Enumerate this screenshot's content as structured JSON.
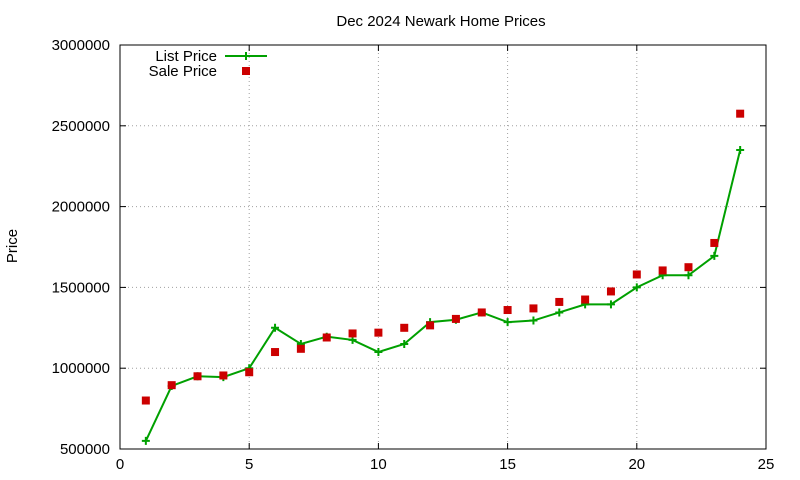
{
  "chart_data": {
    "type": "line",
    "title": "Dec 2024 Newark Home Prices",
    "xlabel": "",
    "ylabel": "Price",
    "xlim": [
      0,
      25
    ],
    "ylim": [
      500000,
      3000000
    ],
    "xticks": [
      0,
      5,
      10,
      15,
      20,
      25
    ],
    "yticks": [
      500000,
      1000000,
      1500000,
      2000000,
      2500000,
      3000000
    ],
    "grid": true,
    "legend_position": "top-left",
    "series": [
      {
        "name": "List Price",
        "style": "line+plus",
        "color": "#00a000",
        "x": [
          1,
          2,
          3,
          4,
          5,
          6,
          7,
          8,
          9,
          10,
          11,
          12,
          13,
          14,
          15,
          16,
          17,
          18,
          19,
          20,
          21,
          22,
          23,
          24
        ],
        "values": [
          550000,
          890000,
          950000,
          945000,
          1000000,
          1250000,
          1150000,
          1195000,
          1175000,
          1100000,
          1150000,
          1285000,
          1300000,
          1345000,
          1285000,
          1295000,
          1345000,
          1395000,
          1395000,
          1500000,
          1575000,
          1575000,
          1695000,
          2350000
        ]
      },
      {
        "name": "Sale Price",
        "style": "square",
        "color": "#cc0000",
        "x": [
          1,
          2,
          3,
          4,
          5,
          6,
          7,
          8,
          9,
          10,
          11,
          12,
          13,
          14,
          15,
          16,
          17,
          18,
          19,
          20,
          21,
          22,
          23,
          24
        ],
        "values": [
          800000,
          895000,
          950000,
          955000,
          975000,
          1100000,
          1120000,
          1190000,
          1215000,
          1220000,
          1250000,
          1265000,
          1305000,
          1345000,
          1360000,
          1370000,
          1410000,
          1425000,
          1475000,
          1580000,
          1605000,
          1625000,
          1775000,
          2575000
        ]
      }
    ]
  }
}
